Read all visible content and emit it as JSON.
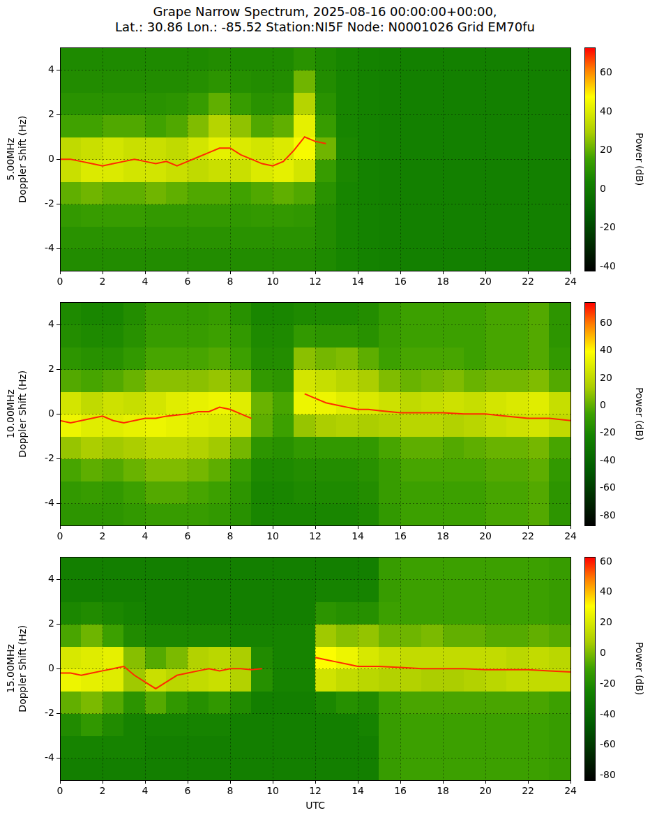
{
  "title": [
    "Grape Narrow Spectrum, 2025-08-16 00:00:00+00:00,",
    "Lat.: 30.86 Lon.: -85.52 Station:NI5F Node: N0001026 Grid EM70fu"
  ],
  "chart_data": [
    {
      "type": "heatmap",
      "y_label": [
        "5.00MHz",
        "Doppler Shift (Hz)"
      ],
      "xlim": [
        0,
        24
      ],
      "xticks": [
        0,
        2,
        4,
        6,
        8,
        10,
        12,
        14,
        16,
        18,
        20,
        22,
        24
      ],
      "ylim": [
        -5,
        5
      ],
      "yticks": [
        -4,
        -2,
        0,
        2,
        4
      ],
      "grid": true,
      "x_bins": [
        0,
        1,
        2,
        3,
        4,
        5,
        6,
        7,
        8,
        9,
        10,
        11,
        12,
        13,
        14,
        15,
        16,
        17,
        18,
        19,
        20,
        21,
        22,
        23,
        24
      ],
      "y_bins": [
        -5,
        -4,
        -3,
        -2,
        -1,
        0,
        1,
        2,
        3,
        4,
        5
      ],
      "cells": [
        [
          8,
          8,
          8,
          8,
          8,
          8,
          8,
          8,
          8,
          8,
          8,
          8,
          7,
          5,
          4,
          3,
          3,
          3,
          3,
          3,
          3,
          3,
          3,
          3
        ],
        [
          10,
          10,
          10,
          10,
          10,
          10,
          10,
          10,
          10,
          10,
          10,
          10,
          8,
          5,
          4,
          3,
          3,
          3,
          3,
          3,
          3,
          3,
          3,
          3
        ],
        [
          13,
          14,
          14,
          14,
          13,
          13,
          13,
          13,
          12,
          13,
          13,
          12,
          8,
          5,
          4,
          3,
          3,
          3,
          3,
          3,
          3,
          3,
          3,
          3
        ],
        [
          20,
          22,
          20,
          20,
          22,
          20,
          18,
          18,
          16,
          18,
          20,
          18,
          10,
          5,
          4,
          3,
          3,
          3,
          3,
          3,
          3,
          3,
          3,
          3
        ],
        [
          36,
          40,
          40,
          38,
          38,
          36,
          34,
          36,
          36,
          40,
          42,
          38,
          14,
          6,
          4,
          3,
          3,
          3,
          3,
          3,
          3,
          3,
          3,
          3
        ],
        [
          34,
          36,
          38,
          36,
          36,
          34,
          38,
          42,
          40,
          38,
          40,
          46,
          22,
          6,
          4,
          3,
          3,
          3,
          3,
          3,
          3,
          3,
          3,
          3
        ],
        [
          16,
          16,
          18,
          18,
          16,
          18,
          24,
          32,
          26,
          18,
          20,
          42,
          14,
          5,
          4,
          3,
          3,
          3,
          3,
          3,
          3,
          3,
          3,
          3
        ],
        [
          10,
          10,
          10,
          10,
          10,
          11,
          14,
          20,
          14,
          10,
          11,
          32,
          10,
          5,
          4,
          3,
          3,
          3,
          3,
          3,
          3,
          3,
          3,
          3
        ],
        [
          8,
          8,
          8,
          8,
          8,
          8,
          9,
          11,
          9,
          8,
          8,
          22,
          8,
          5,
          4,
          3,
          3,
          3,
          3,
          3,
          3,
          3,
          3,
          3
        ],
        [
          7,
          7,
          7,
          7,
          7,
          7,
          7,
          8,
          7,
          7,
          7,
          10,
          7,
          5,
          4,
          3,
          3,
          3,
          3,
          3,
          3,
          3,
          3,
          3
        ]
      ],
      "colorbar": {
        "label": "Power (dB)",
        "range": [
          -42,
          73
        ],
        "ticks": [
          -40,
          -20,
          0,
          20,
          40,
          60
        ]
      },
      "trace": {
        "color": "#ff2a00",
        "x": [
          0,
          0.5,
          1,
          1.5,
          2,
          2.5,
          3,
          3.5,
          4,
          4.5,
          5,
          5.5,
          6,
          6.5,
          7,
          7.5,
          8,
          8.5,
          9,
          9.5,
          10,
          10.5,
          11,
          11.5,
          12,
          12.5
        ],
        "values": [
          0,
          0,
          -0.1,
          -0.2,
          -0.3,
          -0.2,
          -0.1,
          0,
          -0.1,
          -0.2,
          -0.1,
          -0.3,
          -0.1,
          0.1,
          0.3,
          0.5,
          0.5,
          0.2,
          0,
          -0.2,
          -0.3,
          -0.1,
          0.4,
          1,
          0.8,
          0.7
        ]
      }
    },
    {
      "type": "heatmap",
      "y_label": [
        "10.00MHz",
        "Doppler Shift (Hz)"
      ],
      "xlim": [
        0,
        24
      ],
      "xticks": [
        0,
        2,
        4,
        6,
        8,
        10,
        12,
        14,
        16,
        18,
        20,
        22,
        24
      ],
      "ylim": [
        -5,
        5
      ],
      "yticks": [
        -4,
        -2,
        0,
        2,
        4
      ],
      "grid": true,
      "x_bins": [
        0,
        1,
        2,
        3,
        4,
        5,
        6,
        7,
        8,
        9,
        10,
        11,
        12,
        13,
        14,
        15,
        16,
        17,
        18,
        19,
        20,
        21,
        22,
        23,
        24
      ],
      "y_bins": [
        -5,
        -4,
        -3,
        -2,
        -1,
        0,
        1,
        2,
        3,
        4,
        5
      ],
      "cells": [
        [
          -12,
          -12,
          -12,
          -10,
          -8,
          -8,
          -8,
          -10,
          -14,
          -20,
          -20,
          -20,
          -20,
          -20,
          -18,
          -10,
          -6,
          -6,
          -6,
          -6,
          -4,
          -4,
          -2,
          -12
        ],
        [
          -10,
          -8,
          -10,
          -6,
          -2,
          -2,
          -4,
          -6,
          -12,
          -20,
          -20,
          -18,
          -18,
          -18,
          -16,
          -8,
          -6,
          -6,
          -6,
          -6,
          -4,
          -4,
          -2,
          -12
        ],
        [
          -4,
          0,
          -2,
          2,
          6,
          6,
          4,
          0,
          -8,
          -18,
          -18,
          -16,
          -16,
          -16,
          -14,
          -8,
          -4,
          -4,
          -4,
          -4,
          -2,
          -2,
          0,
          -10
        ],
        [
          10,
          14,
          12,
          14,
          18,
          18,
          16,
          12,
          4,
          -12,
          -14,
          -10,
          -10,
          -10,
          -10,
          -4,
          0,
          0,
          -2,
          0,
          2,
          2,
          4,
          -4
        ],
        [
          34,
          30,
          30,
          32,
          34,
          32,
          30,
          28,
          24,
          0,
          -6,
          10,
          14,
          16,
          14,
          16,
          18,
          18,
          16,
          18,
          22,
          24,
          26,
          20
        ],
        [
          26,
          20,
          24,
          22,
          26,
          30,
          32,
          34,
          30,
          2,
          -4,
          34,
          34,
          30,
          28,
          24,
          20,
          22,
          24,
          22,
          26,
          28,
          30,
          22
        ],
        [
          -2,
          -4,
          -2,
          2,
          8,
          8,
          8,
          10,
          6,
          -10,
          -12,
          26,
          22,
          18,
          14,
          6,
          2,
          4,
          6,
          2,
          4,
          4,
          6,
          -2
        ],
        [
          -12,
          -14,
          -14,
          -10,
          -4,
          -4,
          -4,
          -2,
          -6,
          -16,
          -16,
          8,
          4,
          6,
          0,
          -6,
          -4,
          -4,
          -4,
          -6,
          -4,
          -4,
          -2,
          -10
        ],
        [
          -16,
          -18,
          -18,
          -14,
          -8,
          -8,
          -8,
          -6,
          -10,
          -18,
          -18,
          -10,
          -12,
          -12,
          -14,
          -8,
          -6,
          -6,
          -6,
          -6,
          -4,
          -4,
          -2,
          -12
        ],
        [
          -18,
          -20,
          -20,
          -16,
          -10,
          -10,
          -10,
          -8,
          -14,
          -20,
          -20,
          -18,
          -18,
          -18,
          -16,
          -10,
          -6,
          -6,
          -6,
          -6,
          -4,
          -4,
          -2,
          -12
        ]
      ],
      "colorbar": {
        "label": "Power (dB)",
        "range": [
          -87,
          75
        ],
        "ticks": [
          -80,
          -60,
          -40,
          -20,
          0,
          20,
          40,
          60
        ]
      },
      "trace": {
        "color": "#ff2a00",
        "x": [
          0,
          0.5,
          1,
          1.5,
          2,
          2.5,
          3,
          3.5,
          4,
          4.5,
          5,
          5.5,
          6,
          6.5,
          7,
          7.5,
          8,
          8.5,
          9,
          9.5,
          10,
          10.5,
          11,
          11.5,
          12,
          12.5,
          13,
          13.5,
          14,
          14.5,
          15,
          15.5,
          16,
          17,
          18,
          19,
          20,
          21,
          22,
          23,
          24
        ],
        "values": [
          -0.3,
          -0.4,
          -0.3,
          -0.2,
          -0.1,
          -0.3,
          -0.4,
          -0.3,
          -0.2,
          -0.2,
          -0.1,
          -0.05,
          0,
          0.1,
          0.1,
          0.3,
          0.2,
          0,
          -0.2,
          null,
          null,
          null,
          null,
          0.9,
          0.7,
          0.5,
          0.4,
          0.3,
          0.2,
          0.2,
          0.15,
          0.1,
          0.05,
          0.05,
          0.05,
          0,
          0,
          -0.1,
          -0.2,
          -0.2,
          -0.3
        ]
      }
    },
    {
      "type": "heatmap",
      "y_label": [
        "15.00MHz",
        "Doppler Shift (Hz)"
      ],
      "x_label": "UTC",
      "xlim": [
        0,
        24
      ],
      "xticks": [
        0,
        2,
        4,
        6,
        8,
        10,
        12,
        14,
        16,
        18,
        20,
        22,
        24
      ],
      "ylim": [
        -5,
        5
      ],
      "yticks": [
        -4,
        -2,
        0,
        2,
        4
      ],
      "grid": true,
      "x_bins": [
        0,
        1,
        2,
        3,
        4,
        5,
        6,
        7,
        8,
        9,
        10,
        11,
        12,
        13,
        14,
        15,
        16,
        17,
        18,
        19,
        20,
        21,
        22,
        23,
        24
      ],
      "y_bins": [
        -5,
        -4,
        -3,
        -2,
        -1,
        0,
        1,
        2,
        3,
        4,
        5
      ],
      "cells": [
        [
          -26,
          -26,
          -26,
          -26,
          -26,
          -26,
          -26,
          -26,
          -26,
          -26,
          -26,
          -26,
          -26,
          -26,
          -26,
          -12,
          -10,
          -10,
          -10,
          -10,
          -10,
          -10,
          -10,
          -12
        ],
        [
          -24,
          -24,
          -24,
          -24,
          -26,
          -26,
          -26,
          -26,
          -26,
          -26,
          -26,
          -26,
          -26,
          -26,
          -26,
          -12,
          -10,
          -10,
          -10,
          -10,
          -10,
          -10,
          -10,
          -12
        ],
        [
          -20,
          -14,
          -20,
          -24,
          -24,
          -24,
          -24,
          -24,
          -26,
          -26,
          -26,
          -26,
          -26,
          -26,
          -24,
          -12,
          -10,
          -10,
          -10,
          -10,
          -10,
          -10,
          -10,
          -12
        ],
        [
          -4,
          0,
          -6,
          -16,
          -6,
          -14,
          -18,
          -14,
          -20,
          -26,
          -26,
          -26,
          -22,
          -18,
          -20,
          -10,
          -8,
          -8,
          -8,
          -8,
          -8,
          -8,
          -8,
          -10
        ],
        [
          26,
          24,
          22,
          6,
          16,
          12,
          14,
          16,
          10,
          -18,
          -24,
          -24,
          18,
          14,
          12,
          10,
          10,
          8,
          8,
          10,
          12,
          14,
          14,
          14
        ],
        [
          20,
          22,
          24,
          2,
          -6,
          0,
          10,
          12,
          8,
          -20,
          -24,
          -24,
          30,
          26,
          20,
          16,
          14,
          14,
          14,
          14,
          14,
          12,
          14,
          12
        ],
        [
          -8,
          -2,
          -10,
          -20,
          -22,
          -22,
          -22,
          -22,
          -24,
          -24,
          -24,
          -24,
          6,
          2,
          4,
          -2,
          -2,
          0,
          -4,
          -4,
          -6,
          -6,
          -4,
          -6
        ],
        [
          -22,
          -20,
          -22,
          -24,
          -26,
          -26,
          -26,
          -26,
          -26,
          -26,
          -26,
          -26,
          -16,
          -18,
          -18,
          -10,
          -10,
          -10,
          -10,
          -10,
          -10,
          -10,
          -10,
          -12
        ],
        [
          -26,
          -26,
          -26,
          -26,
          -26,
          -26,
          -26,
          -26,
          -26,
          -26,
          -26,
          -26,
          -24,
          -24,
          -24,
          -12,
          -10,
          -10,
          -10,
          -10,
          -10,
          -10,
          -10,
          -12
        ],
        [
          -26,
          -26,
          -26,
          -26,
          -26,
          -26,
          -26,
          -26,
          -26,
          -26,
          -26,
          -26,
          -26,
          -26,
          -26,
          -12,
          -10,
          -10,
          -10,
          -10,
          -10,
          -10,
          -10,
          -12
        ]
      ],
      "colorbar": {
        "label": "Power (dB)",
        "range": [
          -83,
          63
        ],
        "ticks": [
          -80,
          -60,
          -40,
          -20,
          0,
          20,
          40,
          60
        ]
      },
      "trace": {
        "color": "#ff2a00",
        "x": [
          0,
          0.5,
          1,
          1.5,
          2,
          2.5,
          3,
          3.5,
          4,
          4.5,
          5,
          5.5,
          6,
          6.5,
          7,
          7.5,
          8,
          8.5,
          9,
          9.5,
          10,
          10.5,
          11,
          11.5,
          12,
          12.5,
          13,
          13.5,
          14,
          15,
          16,
          17,
          18,
          19,
          20,
          21,
          22,
          23,
          24
        ],
        "values": [
          -0.2,
          -0.2,
          -0.3,
          -0.2,
          -0.1,
          0,
          0.1,
          -0.3,
          -0.6,
          -0.9,
          -0.6,
          -0.3,
          -0.2,
          -0.1,
          0,
          -0.1,
          0,
          0,
          -0.05,
          0,
          null,
          null,
          null,
          null,
          0.5,
          0.4,
          0.3,
          0.2,
          0.1,
          0.1,
          0.05,
          0,
          0,
          0,
          -0.05,
          -0.05,
          -0.05,
          -0.1,
          -0.15
        ]
      }
    }
  ]
}
